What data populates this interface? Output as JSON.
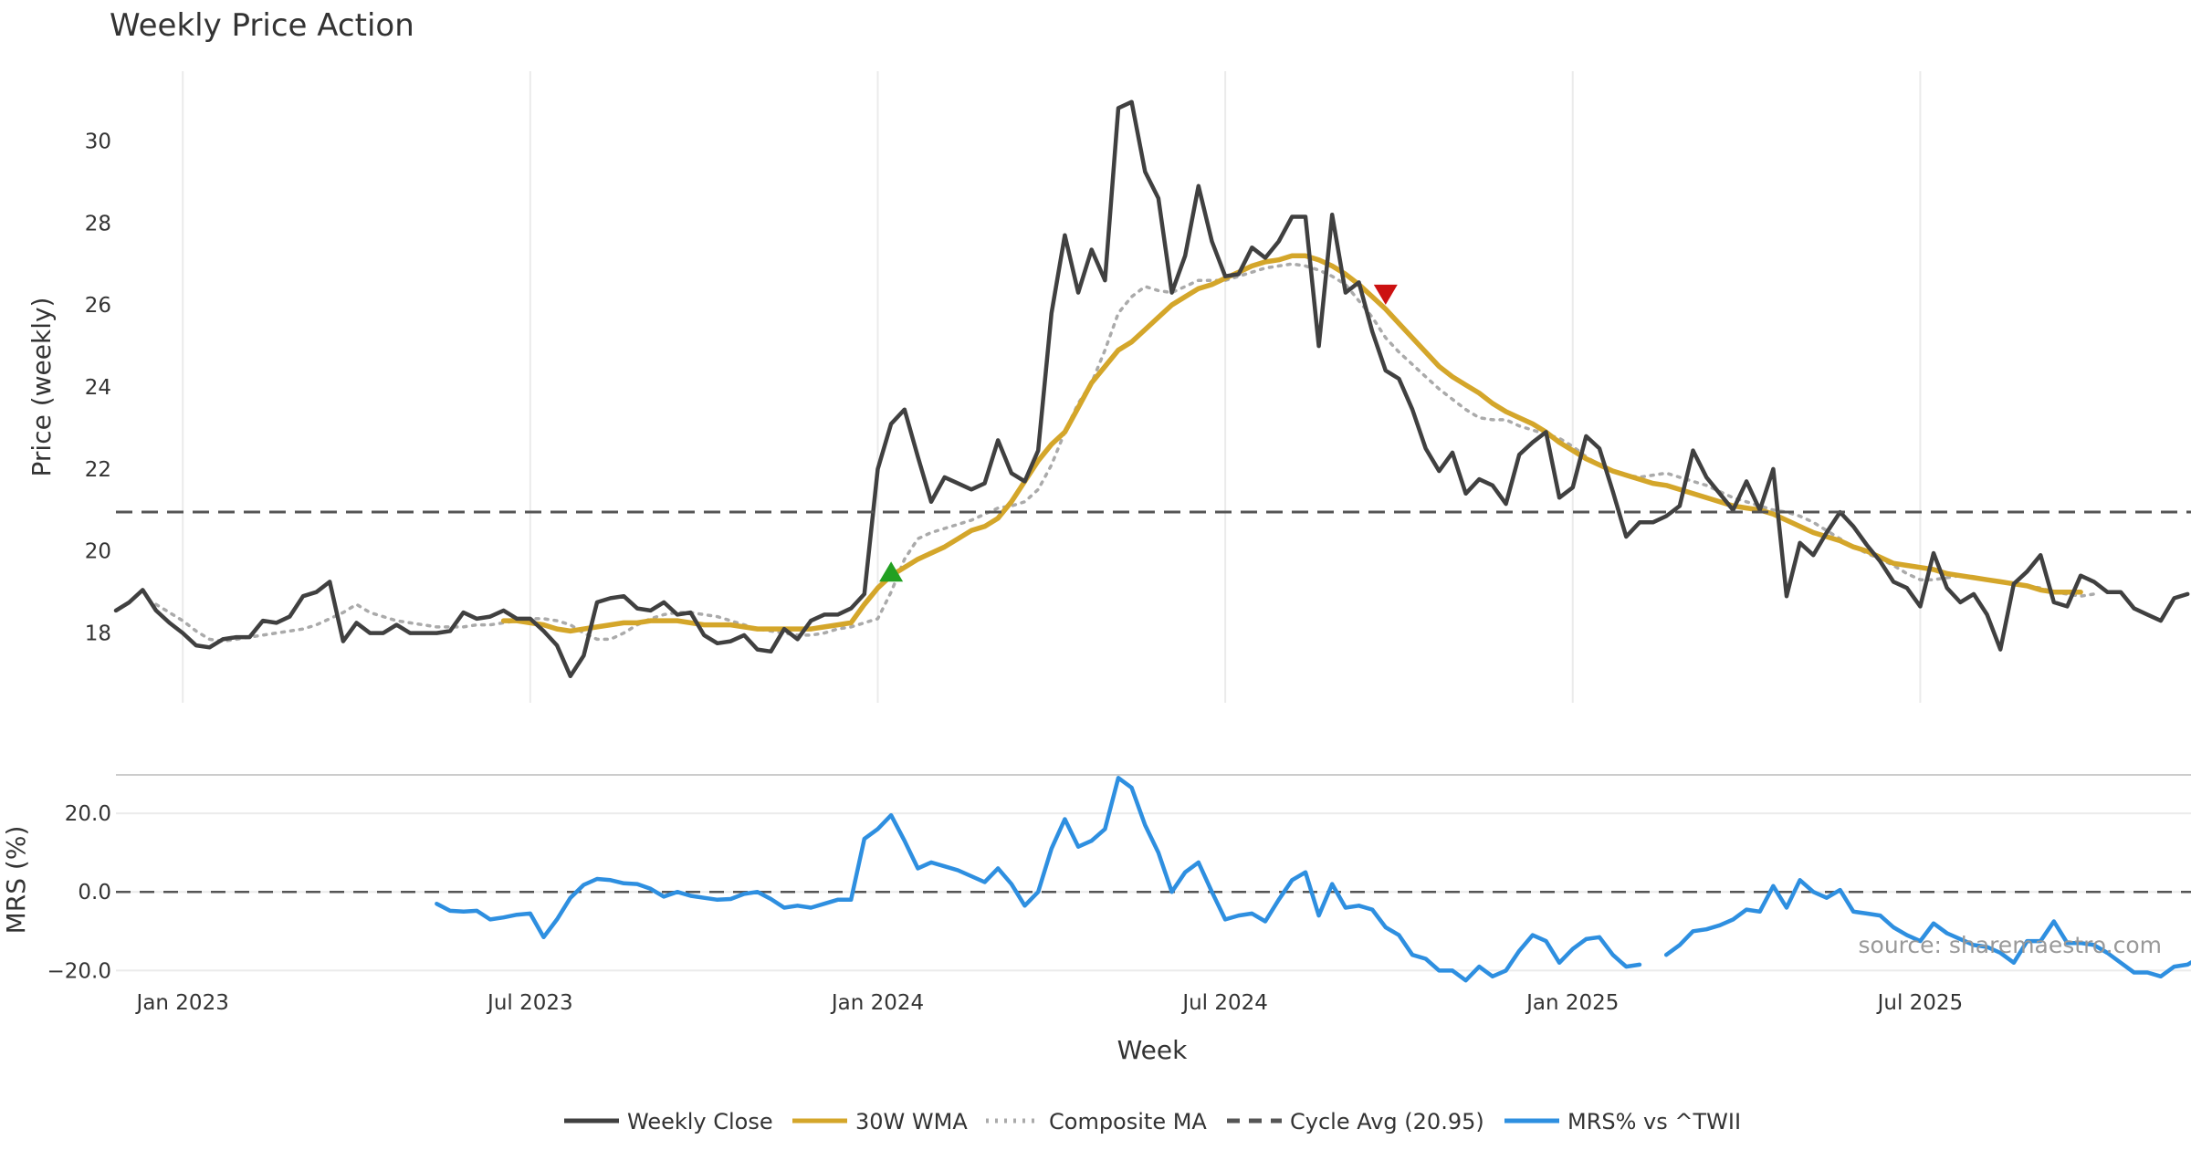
{
  "chart_data": {
    "type": "line",
    "title": "Weekly Price Action",
    "xlabel": "Week",
    "x_ticks": [
      "Jan 2023",
      "Jul 2023",
      "Jan 2024",
      "Jul 2024",
      "Jan 2025",
      "Jul 2025"
    ],
    "x_ticks_week_index": [
      5,
      31,
      57,
      83,
      109,
      135
    ],
    "week_count": 151,
    "price_panel": {
      "ylabel": "Price (weekly)",
      "ylim": [
        16.3,
        31.7
      ],
      "y_ticks": [
        18,
        20,
        22,
        24,
        26,
        28,
        30
      ],
      "grid_x": true,
      "series": [
        {
          "name": "Weekly Close",
          "color": "#404040",
          "style": "solid",
          "start_index": 0,
          "values": [
            18.55,
            18.75,
            19.05,
            18.55,
            18.25,
            18.0,
            17.7,
            17.65,
            17.85,
            17.9,
            17.9,
            18.3,
            18.25,
            18.4,
            18.9,
            19.0,
            19.25,
            17.8,
            18.25,
            18.0,
            18.0,
            18.2,
            18.0,
            18.0,
            18.0,
            18.05,
            18.5,
            18.35,
            18.4,
            18.55,
            18.35,
            18.35,
            18.05,
            17.7,
            16.95,
            17.45,
            18.75,
            18.85,
            18.9,
            18.6,
            18.55,
            18.75,
            18.45,
            18.5,
            17.95,
            17.75,
            17.8,
            17.95,
            17.6,
            17.55,
            18.1,
            17.85,
            18.3,
            18.45,
            18.45,
            18.6,
            18.95,
            22.0,
            23.1,
            23.45,
            22.3,
            21.2,
            21.8,
            21.65,
            21.5,
            21.65,
            22.7,
            21.9,
            21.7,
            22.45,
            25.8,
            27.7,
            26.3,
            27.35,
            26.6,
            30.8,
            30.95,
            29.25,
            28.6,
            26.3,
            27.2,
            28.9,
            27.55,
            26.7,
            26.75,
            27.4,
            27.15,
            27.55,
            28.15,
            28.15,
            25.0,
            28.2,
            26.3,
            26.55,
            25.35,
            24.4,
            24.2,
            23.45,
            22.5,
            21.95,
            22.4,
            21.4,
            21.75,
            21.6,
            21.15,
            22.35,
            22.65,
            22.9,
            21.3,
            21.55,
            22.8,
            22.5,
            21.45,
            20.35,
            20.7,
            20.7,
            20.85,
            21.1,
            22.45,
            21.8,
            21.4,
            21.0,
            21.7,
            21.0,
            22.0,
            18.9,
            20.2,
            19.9,
            20.45,
            20.95,
            20.6,
            20.15,
            19.75,
            19.25,
            19.1,
            18.65,
            19.95,
            19.1,
            18.75,
            18.95,
            18.45,
            17.6,
            19.2,
            19.5,
            19.9,
            18.75,
            18.65,
            19.4,
            19.25,
            19.0,
            19.0,
            18.6,
            18.45,
            18.3,
            18.85,
            18.95
          ]
        },
        {
          "name": "30W WMA",
          "color": "#D4A62A",
          "style": "solid",
          "start_index": 29,
          "values": [
            18.3,
            18.3,
            18.25,
            18.2,
            18.1,
            18.05,
            18.1,
            18.15,
            18.2,
            18.25,
            18.25,
            18.3,
            18.3,
            18.3,
            18.25,
            18.2,
            18.2,
            18.2,
            18.15,
            18.1,
            18.1,
            18.1,
            18.1,
            18.1,
            18.15,
            18.2,
            18.25,
            18.7,
            19.1,
            19.4,
            19.6,
            19.8,
            19.95,
            20.1,
            20.3,
            20.5,
            20.6,
            20.8,
            21.2,
            21.7,
            22.2,
            22.6,
            22.9,
            23.5,
            24.1,
            24.5,
            24.9,
            25.1,
            25.4,
            25.7,
            26.0,
            26.2,
            26.4,
            26.5,
            26.65,
            26.8,
            26.95,
            27.05,
            27.1,
            27.2,
            27.2,
            27.1,
            26.95,
            26.75,
            26.5,
            26.2,
            25.9,
            25.55,
            25.2,
            24.85,
            24.5,
            24.25,
            24.05,
            23.85,
            23.6,
            23.4,
            23.25,
            23.1,
            22.9,
            22.65,
            22.45,
            22.25,
            22.1,
            21.95,
            21.85,
            21.75,
            21.65,
            21.6,
            21.5,
            21.4,
            21.3,
            21.2,
            21.1,
            21.05,
            21.0,
            20.9,
            20.75,
            20.6,
            20.45,
            20.35,
            20.25,
            20.1,
            20.0,
            19.85,
            19.7,
            19.65,
            19.6,
            19.55,
            19.45,
            19.4,
            19.35,
            19.3,
            19.25,
            19.2,
            19.15,
            19.05,
            19.0,
            19.0,
            19.0
          ]
        },
        {
          "name": "Composite MA",
          "color": "#AAAAAA",
          "style": "dotted",
          "start_index": 3,
          "values": [
            18.7,
            18.5,
            18.3,
            18.05,
            17.85,
            17.8,
            17.85,
            17.9,
            17.95,
            18.0,
            18.05,
            18.1,
            18.2,
            18.35,
            18.5,
            18.7,
            18.5,
            18.4,
            18.3,
            18.25,
            18.2,
            18.15,
            18.15,
            18.15,
            18.2,
            18.2,
            18.25,
            18.3,
            18.35,
            18.35,
            18.3,
            18.2,
            18.0,
            17.85,
            17.85,
            18.0,
            18.2,
            18.35,
            18.45,
            18.5,
            18.5,
            18.45,
            18.4,
            18.3,
            18.2,
            18.1,
            18.05,
            18.0,
            17.95,
            17.95,
            18.0,
            18.1,
            18.15,
            18.25,
            18.35,
            19.0,
            19.8,
            20.3,
            20.45,
            20.55,
            20.65,
            20.75,
            20.9,
            21.05,
            21.1,
            21.2,
            21.5,
            22.1,
            22.9,
            23.6,
            24.1,
            24.9,
            25.8,
            26.2,
            26.45,
            26.35,
            26.3,
            26.45,
            26.6,
            26.6,
            26.6,
            26.7,
            26.8,
            26.9,
            26.95,
            27.0,
            26.95,
            26.85,
            26.7,
            26.5,
            26.1,
            25.7,
            25.2,
            24.85,
            24.55,
            24.25,
            23.95,
            23.7,
            23.45,
            23.25,
            23.2,
            23.2,
            23.05,
            22.95,
            22.85,
            22.75,
            22.55,
            22.3,
            22.1,
            21.95,
            21.85,
            21.8,
            21.85,
            21.9,
            21.8,
            21.7,
            21.6,
            21.45,
            21.3,
            21.2,
            21.1,
            21.0,
            20.95,
            20.85,
            20.7,
            20.5,
            20.3,
            20.1,
            19.95,
            19.8,
            19.65,
            19.45,
            19.3,
            19.3,
            19.35,
            19.4,
            19.35,
            19.3,
            19.25,
            19.2,
            19.15,
            19.1,
            19.0,
            18.95,
            18.9,
            18.95
          ]
        },
        {
          "name": "Cycle Avg (20.95)",
          "color": "#555555",
          "style": "dashed",
          "hline": 20.95
        }
      ],
      "markers": [
        {
          "type": "buy",
          "shape": "triangle-up",
          "color": "#22A022",
          "x_index": 58,
          "value": 19.5
        },
        {
          "type": "sell",
          "shape": "triangle-down",
          "color": "#CC1111",
          "x_index": 95,
          "value": 26.25
        }
      ]
    },
    "mrs_panel": {
      "ylabel": "MRS (%)",
      "ylim": [
        -22,
        30
      ],
      "y_ticks": [
        20,
        0,
        -20
      ],
      "y_tick_labels": [
        "20.0",
        "0.0",
        "−20.0"
      ],
      "zero_line": true,
      "series": [
        {
          "name": "MRS% vs ^TWII",
          "color": "#2E8FE0",
          "style": "solid",
          "start_index": 24,
          "values": [
            -3.0,
            -4.8,
            -5.0,
            -4.8,
            -7.0,
            -6.5,
            -5.8,
            -5.5,
            -11.5,
            -7.0,
            -1.5,
            1.8,
            3.3,
            3.0,
            2.2,
            2.0,
            0.8,
            -1.2,
            0.0,
            -1.0,
            -1.5,
            -2.0,
            -1.8,
            -0.5,
            0.0,
            -1.8,
            -4.0,
            -3.5,
            -4.0,
            -3.0,
            -2.0,
            -2.0,
            13.5,
            16.0,
            19.5,
            13.0,
            6.0,
            7.5,
            6.5,
            5.5,
            4.0,
            2.5,
            6.0,
            2.0,
            -3.5,
            0.0,
            11.0,
            18.5,
            11.5,
            13.0,
            16.0,
            29.0,
            26.5,
            17.0,
            10.0,
            0.0,
            5.0,
            7.5,
            0.0,
            -7.0,
            -6.0,
            -5.5,
            -7.5,
            -2.0,
            3.0,
            5.0,
            -6.0,
            2.0,
            -4.0,
            -3.5,
            -4.5,
            -9.0,
            -11.0,
            -16.0,
            -17.0,
            -20.0,
            -20.0,
            -22.5,
            -19.0,
            -21.5,
            -20.0,
            -15.0,
            -11.0,
            -12.5,
            -18.0,
            -14.5,
            -12.0,
            -11.5,
            -16.0,
            -19.0,
            -18.5,
            null,
            -16.0,
            -13.5,
            -10.0,
            -9.5,
            -8.5,
            -7.0,
            -4.5,
            -5.0,
            1.5,
            -4.0,
            3.0,
            0.0,
            -1.5,
            0.5,
            -5.0,
            -5.5,
            -6.0,
            -9.0,
            -11.0,
            -12.5,
            -8.0,
            -10.5,
            -12.0,
            -13.5,
            -14.0,
            -15.5,
            -18.0,
            -12.5,
            -12.5,
            -7.5,
            -13.0,
            -13.0,
            -13.5,
            -15.5,
            -18.0,
            -20.5,
            -20.5,
            -21.5,
            -19.0,
            -18.5,
            -16.5
          ]
        }
      ]
    },
    "legend": {
      "placement": "bottom-center",
      "entries": [
        {
          "label": "Weekly Close",
          "color": "#404040",
          "style": "solid"
        },
        {
          "label": "30W WMA",
          "color": "#D4A62A",
          "style": "solid"
        },
        {
          "label": "Composite MA",
          "color": "#AAAAAA",
          "style": "dotted"
        },
        {
          "label": "Cycle Avg (20.95)",
          "color": "#555555",
          "style": "dashed"
        },
        {
          "label": "MRS% vs ^TWII",
          "color": "#2E8FE0",
          "style": "solid"
        }
      ]
    },
    "annotations": [
      {
        "text": "source: sharemaestro.com",
        "placement": "bottom-right of MRS panel",
        "color": "#999999"
      }
    ]
  }
}
